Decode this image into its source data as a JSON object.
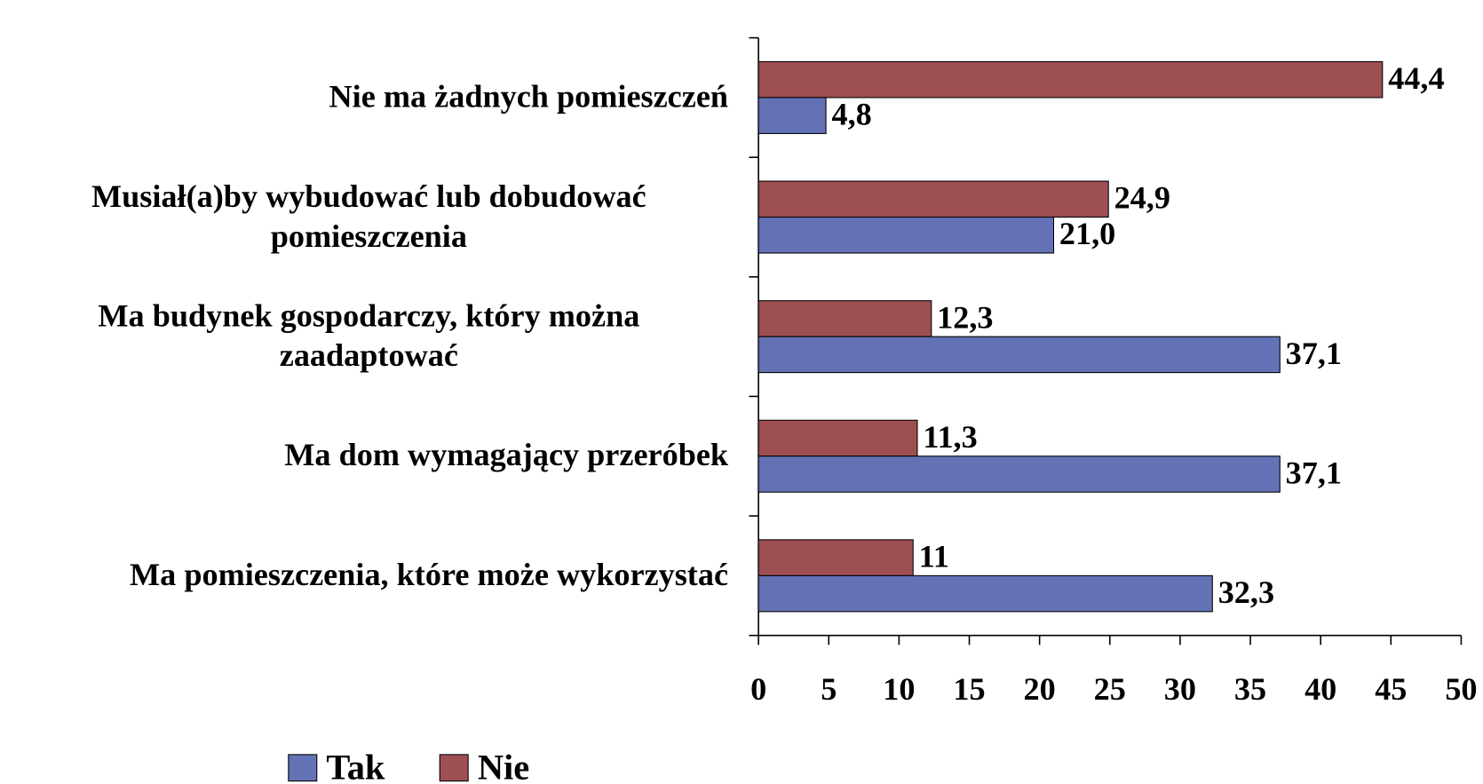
{
  "chart_data": {
    "type": "bar",
    "orientation": "horizontal",
    "categories": [
      "Nie ma żadnych pomieszczeń",
      "Musiał(a)by wybudować lub dobudować pomieszczenia",
      "Ma budynek gospodarczy, który można zaadaptować",
      "Ma dom wymagający przeróbek",
      "Ma pomieszczenia, które może wykorzystać"
    ],
    "series": [
      {
        "name": "Tak",
        "color": "#6272b5",
        "values": [
          4.8,
          21.0,
          37.1,
          37.1,
          32.3
        ],
        "value_labels": [
          "4,8",
          "21,0",
          "37,1",
          "37,1",
          "32,3"
        ]
      },
      {
        "name": "Nie",
        "color": "#9e4f52",
        "values": [
          44.4,
          24.9,
          12.3,
          11.3,
          11
        ],
        "value_labels": [
          "44,4",
          "24,9",
          "12,3",
          "11,3",
          "11"
        ]
      }
    ],
    "xlim": [
      0,
      50
    ],
    "xticks": [
      0,
      5,
      10,
      15,
      20,
      25,
      30,
      35,
      40,
      45,
      50
    ],
    "legend": "bottom"
  }
}
